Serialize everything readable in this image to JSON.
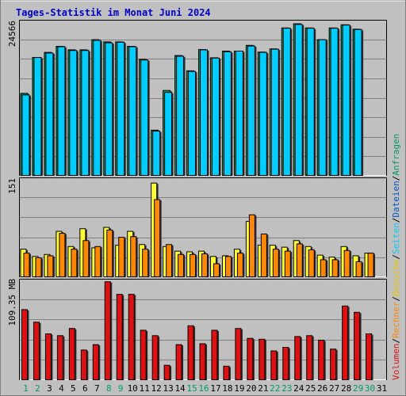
{
  "title": "Tages-Statistik im Monat Juni 2024",
  "colors": {
    "background": "#c0c0c0",
    "title": "#0000cc",
    "grid": "#808080",
    "anfragen": "#009966",
    "dateien": "#00ccff",
    "seiten": "#00ccff",
    "besuche": "#ffff33",
    "rechner": "#ff8800",
    "volumen": "#dd1111",
    "weekday": "#000000",
    "weekend": "#009966"
  },
  "legend": {
    "anfragen": "Anfragen",
    "dateien": "Dateien",
    "seiten": "Seiten",
    "besuche": "Besuche",
    "rechner": "Rechner",
    "volumen": "Volumen",
    "sep1": "/",
    "sep2": "/",
    "sep3": "/",
    "sep4": "/",
    "sep5": "/"
  },
  "chart_data": [
    {
      "type": "bar",
      "panel": "top",
      "ylabel": "24566",
      "ylim": [
        0,
        24566
      ],
      "categories": [
        "1",
        "2",
        "3",
        "4",
        "5",
        "6",
        "7",
        "8",
        "9",
        "10",
        "11",
        "12",
        "13",
        "14",
        "15",
        "16",
        "17",
        "18",
        "19",
        "20",
        "21",
        "22",
        "23",
        "24",
        "25",
        "26",
        "27",
        "28",
        "29",
        "30",
        "31"
      ],
      "weekend_days": [
        "1",
        "2",
        "8",
        "9",
        "15",
        "16",
        "22",
        "23",
        "29",
        "30"
      ],
      "series": [
        {
          "name": "Anfragen",
          "values": [
            13050,
            18700,
            19500,
            20450,
            19900,
            19900,
            21500,
            21150,
            21150,
            20450,
            18400,
            7250,
            13500,
            19000,
            16600,
            19950,
            18650,
            19700,
            19700,
            20600,
            19550,
            20050,
            23350,
            24000,
            23350,
            21500,
            23350,
            23850,
            23150,
            null,
            null
          ]
        },
        {
          "name": "Dateien",
          "values": [
            12800,
            18700,
            19400,
            20400,
            19800,
            19800,
            21400,
            21000,
            21100,
            20400,
            18300,
            7100,
            13200,
            18900,
            16500,
            19900,
            18600,
            19600,
            19700,
            20500,
            19500,
            20000,
            23300,
            23900,
            23300,
            21500,
            23300,
            23800,
            23100,
            null,
            null
          ]
        }
      ]
    },
    {
      "type": "bar",
      "panel": "middle",
      "ylabel": "151",
      "ylim": [
        0,
        151
      ],
      "categories": [
        "1",
        "2",
        "3",
        "4",
        "5",
        "6",
        "7",
        "8",
        "9",
        "10",
        "11",
        "12",
        "13",
        "14",
        "15",
        "16",
        "17",
        "18",
        "19",
        "20",
        "21",
        "22",
        "23",
        "24",
        "25",
        "26",
        "27",
        "28",
        "29",
        "30",
        "31"
      ],
      "series": [
        {
          "name": "Seiten",
          "values": [
            null,
            null,
            null,
            null,
            null,
            null,
            null,
            null,
            null,
            null,
            null,
            null,
            null,
            null,
            null,
            null,
            null,
            null,
            null,
            null,
            null,
            null,
            null,
            null,
            null,
            null,
            null,
            null,
            null,
            null,
            null
          ]
        },
        {
          "name": "Besuche",
          "values": [
            43,
            32,
            35,
            70,
            47,
            74,
            45,
            76,
            49,
            70,
            50,
            143,
            47,
            40,
            39,
            40,
            32,
            33,
            43,
            85,
            49,
            49,
            46,
            56,
            47,
            34,
            31,
            47,
            33,
            37,
            null
          ]
        },
        {
          "name": "Rechner",
          "values": [
            37,
            30,
            33,
            67,
            43,
            56,
            47,
            72,
            61,
            62,
            43,
            118,
            50,
            35,
            35,
            36,
            21,
            32,
            37,
            95,
            66,
            43,
            40,
            51,
            42,
            27,
            27,
            41,
            24,
            37,
            null
          ]
        }
      ]
    },
    {
      "type": "bar",
      "panel": "bottom",
      "ylabel": "109.35 MB",
      "ylim": [
        0,
        109.35
      ],
      "categories": [
        "1",
        "2",
        "3",
        "4",
        "5",
        "6",
        "7",
        "8",
        "9",
        "10",
        "11",
        "12",
        "13",
        "14",
        "15",
        "16",
        "17",
        "18",
        "19",
        "20",
        "21",
        "22",
        "23",
        "24",
        "25",
        "26",
        "27",
        "28",
        "29",
        "30",
        "31"
      ],
      "series": [
        {
          "name": "Volumen",
          "values": [
            79,
            65,
            52,
            50,
            58,
            34,
            40,
            110,
            96,
            96,
            56,
            50,
            17,
            40,
            61,
            41,
            56,
            16,
            58,
            47,
            46,
            33,
            37,
            49,
            50,
            45,
            35,
            83,
            76,
            52,
            null
          ]
        }
      ]
    }
  ]
}
